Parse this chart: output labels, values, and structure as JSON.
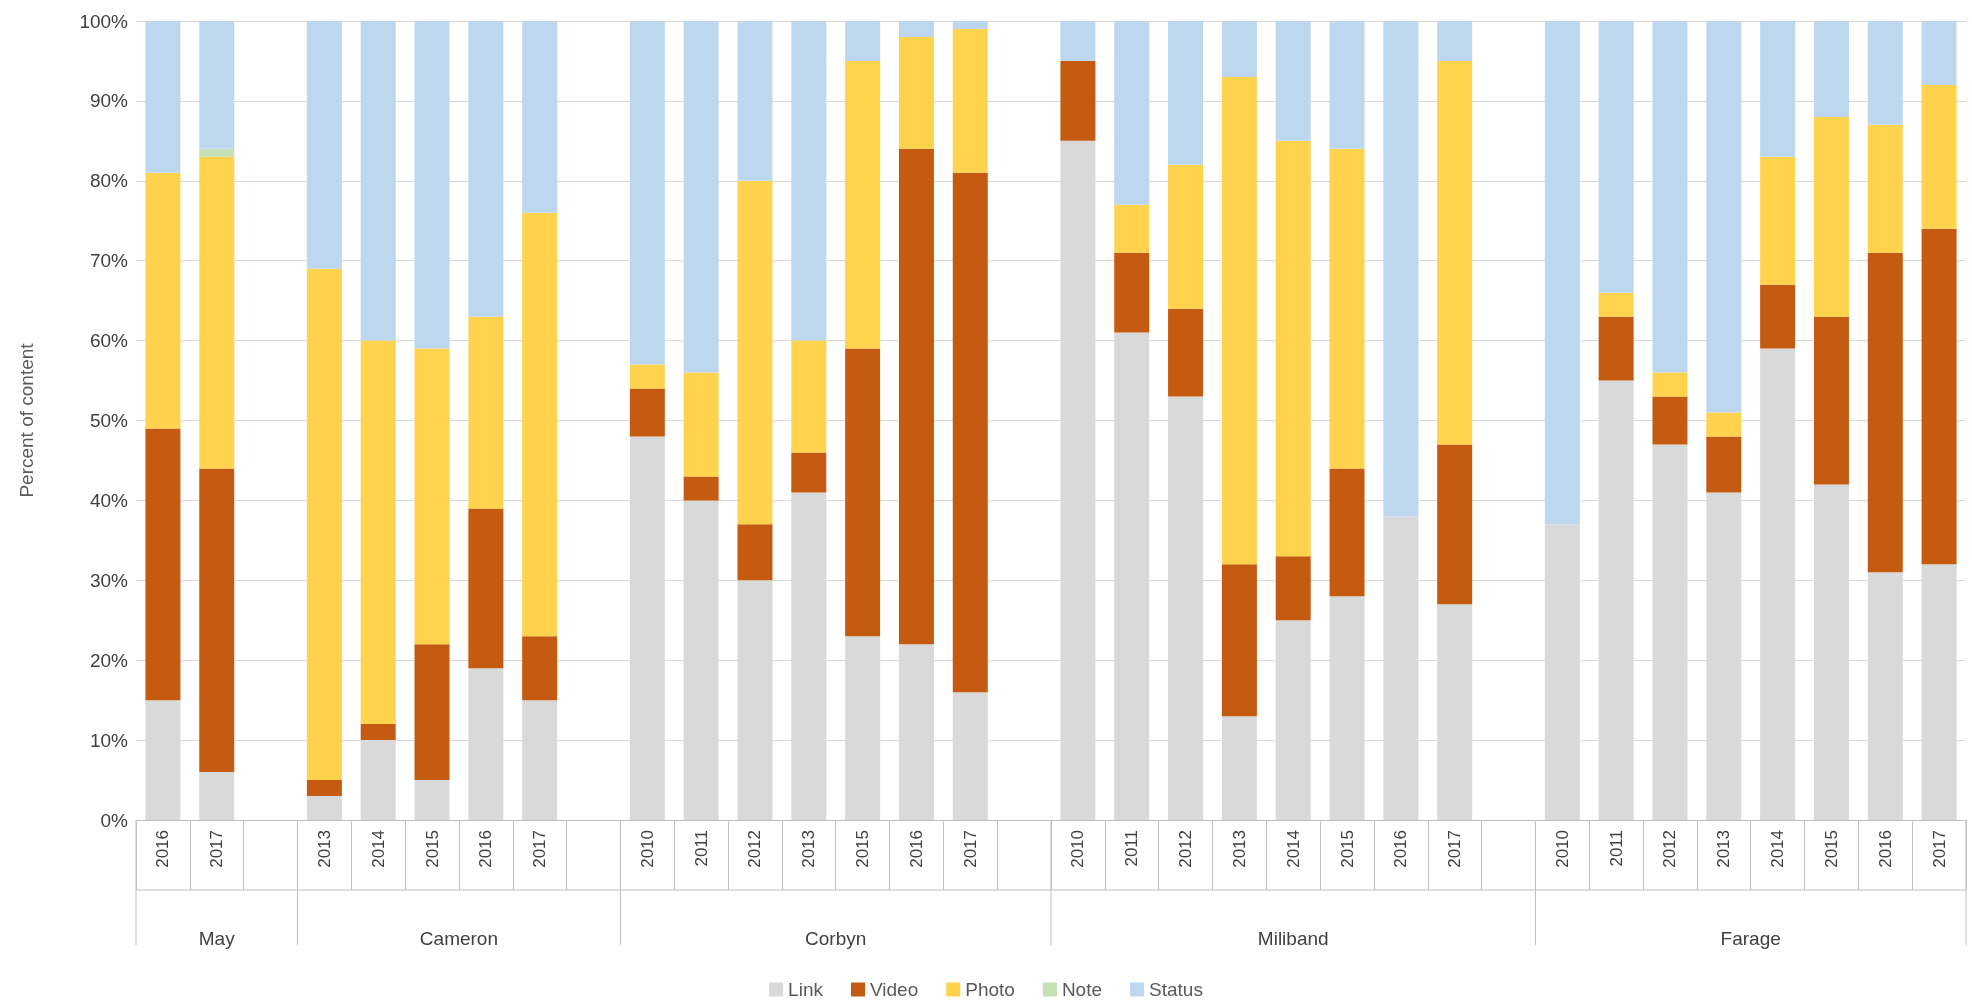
{
  "chart_data": {
    "type": "bar",
    "stacked": true,
    "ylabel": "Percent of content",
    "categories": [
      "2016",
      "2017",
      null,
      "2013",
      "2014",
      "2015",
      "2016",
      "2017",
      null,
      "2010",
      "2011",
      "2012",
      "2013",
      "2015",
      "2016",
      "2017",
      null,
      "2010",
      "2011",
      "2012",
      "2013",
      "2014",
      "2015",
      "2016",
      "2017",
      null,
      "2010",
      "2011",
      "2012",
      "2013",
      "2014",
      "2015",
      "2016",
      "2017"
    ],
    "annotations": [
      "May",
      "Cameron",
      "Corbyn",
      "Miliband",
      "Farage"
    ],
    "series": [
      {
        "name": "Link",
        "color": "#d9d9d9",
        "values": [
          15,
          6,
          null,
          3,
          10,
          5,
          19,
          15,
          null,
          48,
          40,
          30,
          41,
          23,
          22,
          16,
          null,
          85,
          61,
          53,
          13,
          25,
          28,
          38,
          27,
          null,
          37,
          55,
          47,
          41,
          59,
          42,
          31,
          32
        ]
      },
      {
        "name": "Video",
        "color": "#c55a11",
        "values": [
          34,
          38,
          null,
          2,
          2,
          17,
          20,
          8,
          null,
          6,
          3,
          7,
          5,
          36,
          62,
          65,
          null,
          10,
          10,
          11,
          19,
          8,
          16,
          0,
          20,
          null,
          0,
          8,
          6,
          7,
          8,
          21,
          40,
          42
        ]
      },
      {
        "name": "Photo",
        "color": "#ffd34e",
        "values": [
          32,
          39,
          null,
          64,
          48,
          37,
          24,
          53,
          null,
          3,
          13,
          43,
          14,
          36,
          14,
          18,
          null,
          0,
          6,
          18,
          61,
          52,
          40,
          0,
          48,
          null,
          0,
          3,
          3,
          3,
          16,
          25,
          16,
          18
        ]
      },
      {
        "name": "Note",
        "color": "#c5e0b4",
        "values": [
          0,
          1,
          null,
          0,
          0,
          0,
          0,
          0,
          null,
          0,
          0,
          0,
          0,
          0,
          0,
          0,
          null,
          0,
          0,
          0,
          0,
          0,
          0,
          0,
          0,
          null,
          0,
          0,
          0,
          0,
          0,
          0,
          0,
          0
        ]
      },
      {
        "name": "Status",
        "color": "#bdd7ee",
        "values": [
          19,
          16,
          null,
          31,
          40,
          41,
          37,
          24,
          null,
          43,
          44,
          20,
          40,
          5,
          2,
          1,
          null,
          5,
          23,
          18,
          7,
          15,
          16,
          62,
          5,
          null,
          63,
          34,
          44,
          49,
          17,
          12,
          13,
          8
        ]
      }
    ],
    "ylim": [
      0,
      100
    ],
    "yticks": [
      {
        "value": 0,
        "label": "0%"
      },
      {
        "value": 10,
        "label": "10%"
      },
      {
        "value": 20,
        "label": "20%"
      },
      {
        "value": 30,
        "label": "30%"
      },
      {
        "value": 40,
        "label": "40%"
      },
      {
        "value": 50,
        "label": "50%"
      },
      {
        "value": 60,
        "label": "60%"
      },
      {
        "value": 70,
        "label": "70%"
      },
      {
        "value": 80,
        "label": "80%"
      },
      {
        "value": 90,
        "label": "90%"
      },
      {
        "value": 100,
        "label": "100%"
      }
    ],
    "grid": "y",
    "legend": "bottom"
  }
}
